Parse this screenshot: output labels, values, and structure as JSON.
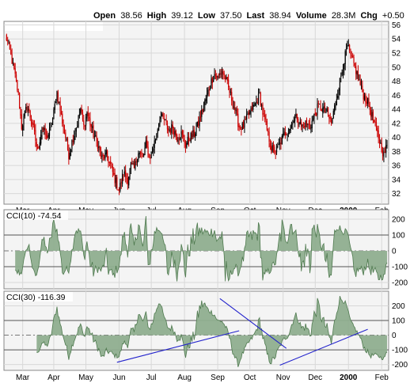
{
  "header": {
    "open_label": "Open",
    "open_value": "38.56",
    "high_label": "High",
    "high_value": "39.12",
    "low_label": "Low",
    "low_value": "37.50",
    "last_label": "Last",
    "last_value": "38.94",
    "volume_label": "Volume",
    "volume_value": "28.3M",
    "chg_label": "Chg",
    "chg_value": "+0.50"
  },
  "colors": {
    "up": "#000000",
    "down": "#cc0000",
    "grid": "#d8d8d8",
    "cci_fill": "#8fae8f",
    "cci_line": "#4f7a4f",
    "trend": "#2222cc",
    "panel_bg": "#f4f4f4"
  },
  "chart_data": [
    {
      "type": "candlestick",
      "title": "",
      "ylim": [
        30.5,
        56.5
      ],
      "yticks": [
        32,
        34,
        36,
        38,
        40,
        42,
        44,
        46,
        48,
        50,
        52,
        54,
        56
      ],
      "month_labels": [
        {
          "label": "Mar",
          "day": 16
        },
        {
          "label": "Apr",
          "day": 45
        },
        {
          "label": "May",
          "day": 75
        },
        {
          "label": "Jun",
          "day": 106
        },
        {
          "label": "Jul",
          "day": 136
        },
        {
          "label": "Aug",
          "day": 167
        },
        {
          "label": "Sep",
          "day": 198
        },
        {
          "label": "Oct",
          "day": 228
        },
        {
          "label": "Nov",
          "day": 259
        },
        {
          "label": "Dec",
          "day": 289
        },
        {
          "label": "2000",
          "day": 320,
          "bold": true
        },
        {
          "label": "Feb",
          "day": 351
        }
      ],
      "close_anchors": [
        [
          0,
          54.5
        ],
        [
          3,
          53.0
        ],
        [
          8,
          49.5
        ],
        [
          12,
          46.0
        ],
        [
          15,
          41.5
        ],
        [
          20,
          44.5
        ],
        [
          25,
          42.0
        ],
        [
          30,
          38.0
        ],
        [
          34,
          41.5
        ],
        [
          38,
          40.0
        ],
        [
          42,
          41.0
        ],
        [
          45,
          43.5
        ],
        [
          48,
          46.5
        ],
        [
          52,
          43.0
        ],
        [
          56,
          40.0
        ],
        [
          59,
          37.5
        ],
        [
          63,
          40.0
        ],
        [
          67,
          42.0
        ],
        [
          70,
          44.0
        ],
        [
          73,
          41.5
        ],
        [
          76,
          43.5
        ],
        [
          79,
          42.0
        ],
        [
          82,
          40.5
        ],
        [
          86,
          39.0
        ],
        [
          90,
          37.0
        ],
        [
          94,
          37.5
        ],
        [
          98,
          36.0
        ],
        [
          102,
          34.0
        ],
        [
          106,
          32.5
        ],
        [
          110,
          35.0
        ],
        [
          114,
          34.0
        ],
        [
          117,
          36.0
        ],
        [
          120,
          35.5
        ],
        [
          124,
          38.0
        ],
        [
          128,
          37.0
        ],
        [
          131,
          39.0
        ],
        [
          134,
          37.0
        ],
        [
          137,
          38.0
        ],
        [
          140,
          40.0
        ],
        [
          144,
          43.0
        ],
        [
          148,
          42.5
        ],
        [
          152,
          41.0
        ],
        [
          156,
          41.5
        ],
        [
          160,
          40.0
        ],
        [
          164,
          40.5
        ],
        [
          168,
          39.0
        ],
        [
          172,
          40.0
        ],
        [
          176,
          40.5
        ],
        [
          180,
          42.0
        ],
        [
          184,
          44.0
        ],
        [
          188,
          46.0
        ],
        [
          192,
          48.0
        ],
        [
          195,
          49.0
        ],
        [
          198,
          48.5
        ],
        [
          202,
          49.5
        ],
        [
          206,
          48.0
        ],
        [
          210,
          46.0
        ],
        [
          214,
          44.0
        ],
        [
          218,
          41.5
        ],
        [
          222,
          41.5
        ],
        [
          226,
          43.0
        ],
        [
          230,
          44.0
        ],
        [
          234,
          45.0
        ],
        [
          237,
          46.0
        ],
        [
          240,
          43.5
        ],
        [
          244,
          41.0
        ],
        [
          248,
          38.5
        ],
        [
          252,
          38.0
        ],
        [
          256,
          39.0
        ],
        [
          260,
          40.5
        ],
        [
          264,
          41.0
        ],
        [
          268,
          42.5
        ],
        [
          272,
          43.0
        ],
        [
          276,
          41.5
        ],
        [
          280,
          42.0
        ],
        [
          284,
          41.5
        ],
        [
          288,
          43.0
        ],
        [
          292,
          44.5
        ],
        [
          296,
          44.0
        ],
        [
          300,
          43.5
        ],
        [
          304,
          42.0
        ],
        [
          308,
          45.0
        ],
        [
          312,
          48.0
        ],
        [
          316,
          51.0
        ],
        [
          319,
          53.0
        ],
        [
          322,
          51.5
        ],
        [
          326,
          50.0
        ],
        [
          330,
          48.0
        ],
        [
          334,
          46.0
        ],
        [
          338,
          45.0
        ],
        [
          342,
          43.0
        ],
        [
          346,
          41.0
        ],
        [
          350,
          39.0
        ],
        [
          353,
          37.5
        ],
        [
          356,
          38.9
        ]
      ],
      "last_close": 38.94
    },
    {
      "type": "area",
      "title": "CCI(10)",
      "value": "-74.54",
      "ylim": [
        -240,
        260
      ],
      "yticks": [
        -200,
        -100,
        0,
        100,
        200
      ],
      "zero_line": true
    },
    {
      "type": "area",
      "title": "CCI(30)",
      "value": "-116.39",
      "ylim": [
        -240,
        300
      ],
      "yticks": [
        -200,
        -100,
        0,
        100,
        200
      ],
      "zero_line": true,
      "trendlines": [
        {
          "from": [
            104,
            -185
          ],
          "to": [
            218,
            30
          ]
        },
        {
          "from": [
            200,
            250
          ],
          "to": [
            262,
            -90
          ]
        },
        {
          "from": [
            256,
            -205
          ],
          "to": [
            338,
            40
          ]
        }
      ]
    }
  ]
}
